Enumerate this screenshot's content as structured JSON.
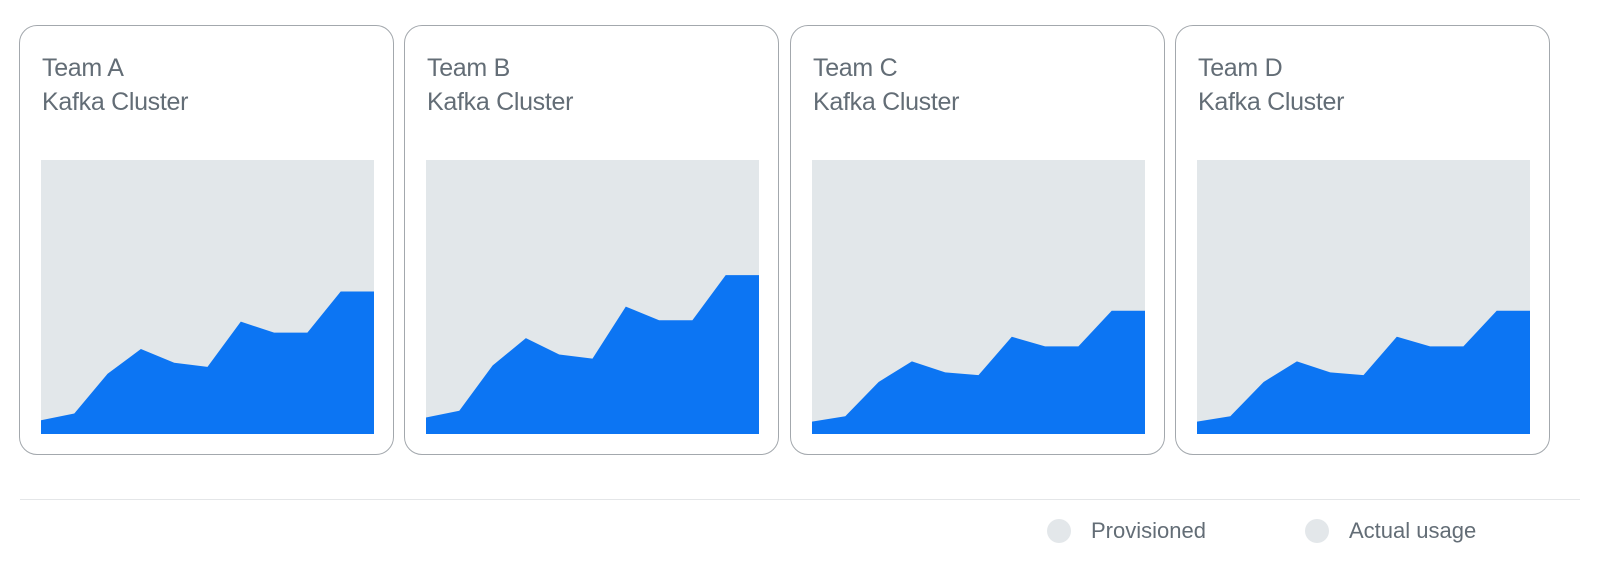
{
  "colors": {
    "provisioned": "#e2e7ea",
    "actual_usage": "#0c75f3",
    "text": "#636d76",
    "card_border": "#a3a8ad"
  },
  "legend": {
    "provisioned_label": "Provisioned",
    "actual_usage_label": "Actual usage"
  },
  "chart_data": [
    {
      "type": "area",
      "title": "Team A",
      "subtitle": "Kafka Cluster",
      "ylim": [
        0,
        100
      ],
      "x": [
        0,
        1,
        2,
        3,
        4,
        5,
        6,
        7,
        8,
        9,
        10
      ],
      "series": [
        {
          "name": "Provisioned",
          "values": [
            100,
            100,
            100,
            100,
            100,
            100,
            100,
            100,
            100,
            100,
            100
          ]
        },
        {
          "name": "Actual usage",
          "values": [
            5,
            7.5,
            22,
            31,
            26,
            24.5,
            41,
            37,
            37,
            52,
            52
          ]
        }
      ]
    },
    {
      "type": "area",
      "title": "Team B",
      "subtitle": "Kafka Cluster",
      "ylim": [
        0,
        100
      ],
      "x": [
        0,
        1,
        2,
        3,
        4,
        5,
        6,
        7,
        8,
        9,
        10
      ],
      "series": [
        {
          "name": "Provisioned",
          "values": [
            100,
            100,
            100,
            100,
            100,
            100,
            100,
            100,
            100,
            100,
            100
          ]
        },
        {
          "name": "Actual usage",
          "values": [
            6,
            8.5,
            25,
            35,
            29,
            27.5,
            46.5,
            41.5,
            41.5,
            58,
            58
          ]
        }
      ]
    },
    {
      "type": "area",
      "title": "Team C",
      "subtitle": "Kafka Cluster",
      "ylim": [
        0,
        100
      ],
      "x": [
        0,
        1,
        2,
        3,
        4,
        5,
        6,
        7,
        8,
        9,
        10
      ],
      "series": [
        {
          "name": "Provisioned",
          "values": [
            100,
            100,
            100,
            100,
            100,
            100,
            100,
            100,
            100,
            100,
            100
          ]
        },
        {
          "name": "Actual usage",
          "values": [
            4.5,
            6.5,
            19,
            26.5,
            22.5,
            21.5,
            35.5,
            32,
            32,
            45,
            45
          ]
        }
      ]
    },
    {
      "type": "area",
      "title": "Team D",
      "subtitle": "Kafka Cluster",
      "ylim": [
        0,
        100
      ],
      "x": [
        0,
        1,
        2,
        3,
        4,
        5,
        6,
        7,
        8,
        9,
        10
      ],
      "series": [
        {
          "name": "Provisioned",
          "values": [
            100,
            100,
            100,
            100,
            100,
            100,
            100,
            100,
            100,
            100,
            100
          ]
        },
        {
          "name": "Actual usage",
          "values": [
            4.5,
            6.5,
            19,
            26.5,
            22.5,
            21.5,
            35.5,
            32,
            32,
            45,
            45
          ]
        }
      ]
    }
  ]
}
